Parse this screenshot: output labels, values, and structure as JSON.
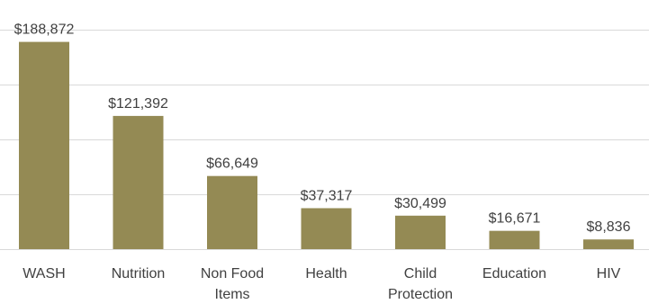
{
  "chart_data": {
    "type": "bar",
    "categories": [
      [
        "WASH"
      ],
      [
        "Nutrition"
      ],
      [
        "Non Food",
        "Items"
      ],
      [
        "Health"
      ],
      [
        "Child",
        "Protection"
      ],
      [
        "Education"
      ],
      [
        "HIV"
      ]
    ],
    "values": [
      188872,
      121392,
      66649,
      37317,
      30499,
      16671,
      8836
    ],
    "value_labels": [
      "$188,872",
      "$121,392",
      "$66,649",
      "$37,317",
      "$30,499",
      "$16,671",
      "$8,836"
    ],
    "ylim": [
      0,
      200000
    ],
    "y_gridlines": [
      0,
      50000,
      100000,
      150000,
      200000
    ],
    "grid": true,
    "bar_color": "#948a54",
    "title": "",
    "xlabel": "",
    "ylabel": ""
  }
}
